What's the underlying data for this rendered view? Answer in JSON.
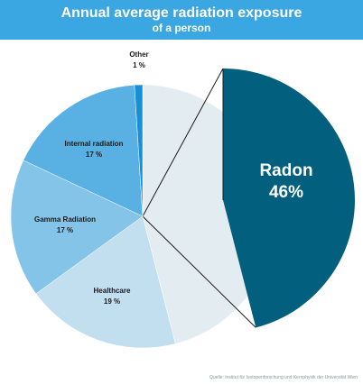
{
  "header": {
    "title": "Annual average radiation exposure",
    "subtitle": "of a person"
  },
  "source": "Quelle: Institut für Isotopenforschung und Kernphysik der Universität Wien",
  "chart_data": {
    "type": "pie",
    "title": "Annual average radiation exposure",
    "subtitle": "of a person",
    "unit": "%",
    "slices": [
      {
        "label": "Radon",
        "value": 46,
        "display": "46%",
        "color": "#e3ecf0",
        "exploded_color": "#025f7e"
      },
      {
        "label": "Healthcare",
        "value": 19,
        "display": "19 %",
        "color": "#c2dff0"
      },
      {
        "label": "Gamma Radiation",
        "value": 17,
        "display": "17 %",
        "color": "#84c4e8"
      },
      {
        "label": "Internal radiation",
        "value": 17,
        "display": "17 %",
        "color": "#58b0e3"
      },
      {
        "label": "Other",
        "value": 1,
        "display": "1 %",
        "color": "#1790d6"
      }
    ],
    "start_angle_deg": 0,
    "direction": "clockwise",
    "exploded_slice": "Radon"
  }
}
